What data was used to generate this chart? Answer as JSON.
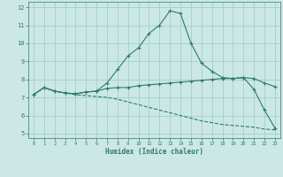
{
  "x": [
    0,
    1,
    2,
    3,
    4,
    5,
    6,
    7,
    8,
    9,
    10,
    11,
    12,
    13,
    14,
    15,
    16,
    17,
    18,
    19,
    20,
    21,
    22,
    23
  ],
  "curve1": [
    7.15,
    7.55,
    7.35,
    7.25,
    7.2,
    7.3,
    7.35,
    7.8,
    8.55,
    9.3,
    9.75,
    10.55,
    11.0,
    11.8,
    11.65,
    10.0,
    8.9,
    8.45,
    8.1,
    8.05,
    8.1,
    7.45,
    6.3,
    5.3
  ],
  "curve2": [
    7.15,
    7.55,
    7.35,
    7.25,
    7.2,
    7.3,
    7.35,
    7.5,
    7.55,
    7.55,
    7.65,
    7.7,
    7.75,
    7.8,
    7.85,
    7.9,
    7.95,
    8.0,
    8.05,
    8.05,
    8.1,
    8.05,
    7.8,
    7.6
  ],
  "curve3": [
    7.15,
    7.55,
    7.35,
    7.25,
    7.15,
    7.1,
    7.05,
    7.0,
    6.9,
    6.75,
    6.6,
    6.45,
    6.3,
    6.15,
    6.0,
    5.85,
    5.7,
    5.6,
    5.5,
    5.45,
    5.4,
    5.35,
    5.25,
    5.2
  ],
  "line_color": "#2d7a6e",
  "bg_color": "#cce8e4",
  "grid_color": "#99ccc6",
  "xlabel": "Humidex (Indice chaleur)",
  "xlim": [
    -0.5,
    23.5
  ],
  "ylim": [
    4.75,
    12.3
  ],
  "yticks": [
    5,
    6,
    7,
    8,
    9,
    10,
    11,
    12
  ],
  "xticks": [
    0,
    1,
    2,
    3,
    4,
    5,
    6,
    7,
    8,
    9,
    10,
    11,
    12,
    13,
    14,
    15,
    16,
    17,
    18,
    19,
    20,
    21,
    22,
    23
  ]
}
